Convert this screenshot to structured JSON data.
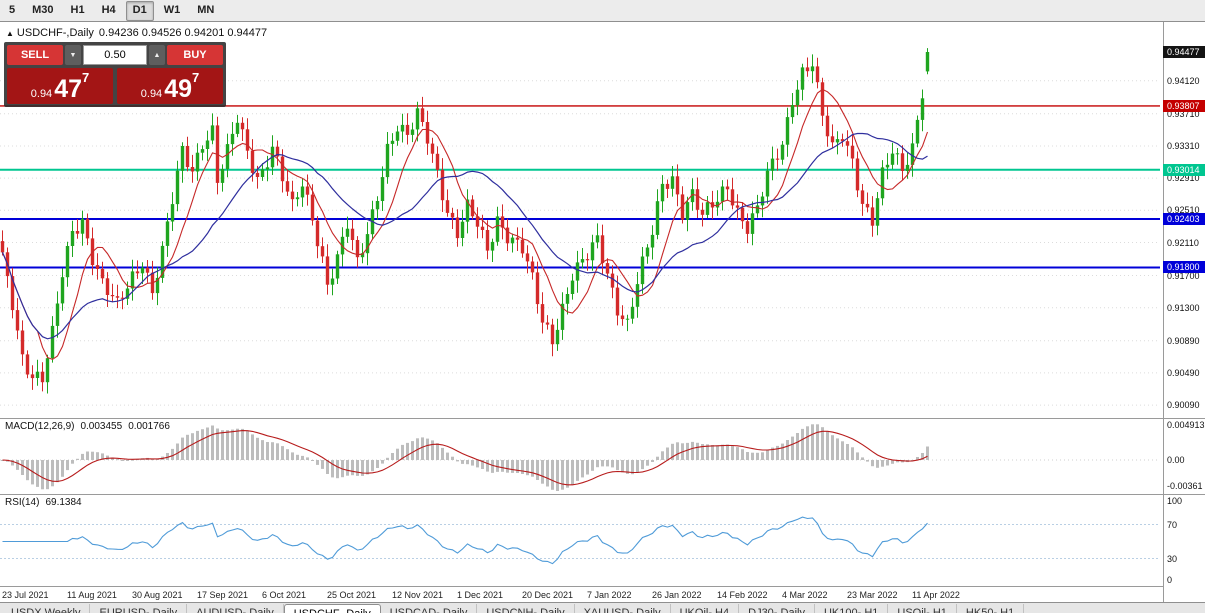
{
  "toolbar": {
    "timeframes": [
      {
        "label": "5",
        "active": false
      },
      {
        "label": "M30",
        "active": false
      },
      {
        "label": "H1",
        "active": false
      },
      {
        "label": "H4",
        "active": false
      },
      {
        "label": "D1",
        "active": true
      },
      {
        "label": "W1",
        "active": false
      },
      {
        "label": "MN",
        "active": false
      }
    ]
  },
  "chart_title": {
    "icon": "▲",
    "symbol": "USDCHF-,Daily",
    "ohlc": "0.94236 0.94526 0.94201 0.94477"
  },
  "trade_panel": {
    "sell_label": "SELL",
    "buy_label": "BUY",
    "volume": "0.50",
    "sell_price_prefix": "0.94",
    "sell_price_big": "47",
    "sell_price_sup": "7",
    "buy_price_prefix": "0.94",
    "buy_price_big": "49",
    "buy_price_sup": "7"
  },
  "chart_data": {
    "type": "candlestick",
    "symbol": "USDCHF-",
    "timeframe": "Daily",
    "current_bar": {
      "open": 0.94236,
      "high": 0.94526,
      "low": 0.94201,
      "close": 0.94477
    },
    "current_price": "0.94477",
    "y_axis": {
      "top": 0.9485,
      "bottom": 0.8993,
      "ticks": [
        "0.94120",
        "0.93710",
        "0.93310",
        "0.92910",
        "0.92510",
        "0.92110",
        "0.91700",
        "0.91300",
        "0.90890",
        "0.90490",
        "0.90090"
      ]
    },
    "levels": [
      {
        "price": 0.93807,
        "label": "0.93807",
        "color": "#c40000",
        "width": 1.4
      },
      {
        "price": 0.93014,
        "label": "0.93014",
        "color": "#00c690",
        "width": 2
      },
      {
        "price": 0.92403,
        "label": "0.92403",
        "color": "#0000d8",
        "width": 2
      },
      {
        "price": 0.918,
        "label": "0.91800",
        "color": "#0000d8",
        "width": 2
      }
    ],
    "x_axis_dates": [
      "23 Jul 2021",
      "11 Aug 2021",
      "30 Aug 2021",
      "17 Sep 2021",
      "6 Oct 2021",
      "25 Oct 2021",
      "12 Nov 2021",
      "1 Dec 2021",
      "20 Dec 2021",
      "7 Jan 2022",
      "26 Jan 2022",
      "14 Feb 2022",
      "4 Mar 2022",
      "23 Mar 2022",
      "11 Apr 2022"
    ],
    "num_candles": 186,
    "candles_per_label": 13,
    "price_waypoints": [
      [
        0,
        0.919
      ],
      [
        2,
        0.9135
      ],
      [
        4,
        0.907
      ],
      [
        6,
        0.9048
      ],
      [
        8,
        0.9042
      ],
      [
        10,
        0.9095
      ],
      [
        12,
        0.917
      ],
      [
        14,
        0.9225
      ],
      [
        16,
        0.924
      ],
      [
        18,
        0.9195
      ],
      [
        20,
        0.916
      ],
      [
        23,
        0.913
      ],
      [
        26,
        0.9168
      ],
      [
        28,
        0.919
      ],
      [
        30,
        0.9152
      ],
      [
        32,
        0.92
      ],
      [
        34,
        0.9262
      ],
      [
        36,
        0.9322
      ],
      [
        38,
        0.93
      ],
      [
        40,
        0.9338
      ],
      [
        42,
        0.9352
      ],
      [
        43,
        0.929
      ],
      [
        45,
        0.9322
      ],
      [
        47,
        0.9362
      ],
      [
        49,
        0.9322
      ],
      [
        51,
        0.9292
      ],
      [
        52,
        0.9302
      ],
      [
        54,
        0.9332
      ],
      [
        56,
        0.9292
      ],
      [
        58,
        0.9252
      ],
      [
        60,
        0.9282
      ],
      [
        62,
        0.9242
      ],
      [
        64,
        0.9192
      ],
      [
        65,
        0.9162
      ],
      [
        67,
        0.9192
      ],
      [
        69,
        0.9232
      ],
      [
        71,
        0.9182
      ],
      [
        73,
        0.9222
      ],
      [
        75,
        0.9272
      ],
      [
        77,
        0.933
      ],
      [
        79,
        0.9355
      ],
      [
        81,
        0.934
      ],
      [
        83,
        0.9368
      ],
      [
        85,
        0.9342
      ],
      [
        87,
        0.93
      ],
      [
        89,
        0.9252
      ],
      [
        91,
        0.9222
      ],
      [
        93,
        0.9252
      ],
      [
        95,
        0.9232
      ],
      [
        97,
        0.9202
      ],
      [
        99,
        0.9242
      ],
      [
        101,
        0.9222
      ],
      [
        104,
        0.9202
      ],
      [
        106,
        0.9162
      ],
      [
        108,
        0.9112
      ],
      [
        110,
        0.9092
      ],
      [
        112,
        0.9132
      ],
      [
        114,
        0.9172
      ],
      [
        117,
        0.9192
      ],
      [
        119,
        0.9212
      ],
      [
        121,
        0.9172
      ],
      [
        123,
        0.9132
      ],
      [
        125,
        0.9112
      ],
      [
        127,
        0.9162
      ],
      [
        130,
        0.9222
      ],
      [
        132,
        0.9282
      ],
      [
        134,
        0.9292
      ],
      [
        136,
        0.9252
      ],
      [
        138,
        0.9272
      ],
      [
        140,
        0.9242
      ],
      [
        143,
        0.9262
      ],
      [
        145,
        0.9282
      ],
      [
        147,
        0.9252
      ],
      [
        149,
        0.9232
      ],
      [
        151,
        0.9252
      ],
      [
        153,
        0.9292
      ],
      [
        156,
        0.9332
      ],
      [
        158,
        0.9392
      ],
      [
        160,
        0.9425
      ],
      [
        162,
        0.9435
      ],
      [
        164,
        0.9365
      ],
      [
        166,
        0.9325
      ],
      [
        168,
        0.9345
      ],
      [
        170,
        0.9315
      ],
      [
        172,
        0.9262
      ],
      [
        174,
        0.9238
      ],
      [
        176,
        0.9292
      ],
      [
        178,
        0.9322
      ],
      [
        180,
        0.9302
      ],
      [
        182,
        0.9332
      ],
      [
        184,
        0.9402
      ],
      [
        185,
        0.94477
      ]
    ],
    "colors": {
      "up": "#1fa51f",
      "down": "#d42a2a",
      "ma_fast": "#c62828",
      "ma_slow": "#2f2f9e",
      "macd_hist": "#bdbdbd",
      "macd_signal": "#b71c1c",
      "rsi": "#4f9bd8"
    },
    "moving_averages": [
      {
        "period": 8,
        "color_key": "ma_fast"
      },
      {
        "period": 21,
        "color_key": "ma_slow"
      }
    ],
    "indicators": {
      "macd": {
        "label": "MACD(12,26,9)",
        "value_main": "0.003455",
        "value_signal": "0.001766",
        "axis_max": "0.004913",
        "axis_zero": "0.00",
        "axis_min": "-0.00361",
        "fast": 12,
        "slow": 26,
        "signal": 9
      },
      "rsi": {
        "label": "RSI(14)",
        "value": "69.1384",
        "axis": [
          "100",
          "70",
          "30",
          "0"
        ],
        "period": 14,
        "levels": [
          70,
          30
        ]
      }
    }
  },
  "tabs": [
    {
      "label": "USDX,Weekly",
      "active": false
    },
    {
      "label": "EURUSD-,Daily",
      "active": false
    },
    {
      "label": "AUDUSD-,Daily",
      "active": false
    },
    {
      "label": "USDCHF-,Daily",
      "active": true
    },
    {
      "label": "USDCAD-,Daily",
      "active": false
    },
    {
      "label": "USDCNH-,Daily",
      "active": false
    },
    {
      "label": "XAUUSD-,Daily",
      "active": false
    },
    {
      "label": "UKOil-,H4",
      "active": false
    },
    {
      "label": "DJ30-,Daily",
      "active": false
    },
    {
      "label": "UK100-,H1",
      "active": false
    },
    {
      "label": "USOil-,H1",
      "active": false
    },
    {
      "label": "HK50-,H1",
      "active": false
    }
  ]
}
